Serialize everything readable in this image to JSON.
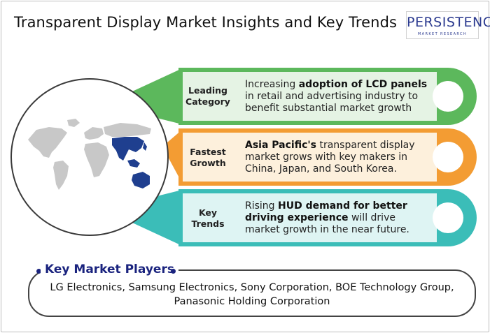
{
  "title": "Transparent Display Market Insights and Key Trends",
  "logo": {
    "main": "PERSISTENCE",
    "sub": "MARKET RESEARCH"
  },
  "colors": {
    "green": "#5cb85c",
    "orange": "#f39c33",
    "teal": "#3bbdb8",
    "navy": "#1a237e",
    "map_highlight": "#1f3f8f",
    "map_grey": "#c8c8c8"
  },
  "cards": [
    {
      "category": "Leading Category",
      "pre": "Increasing ",
      "bold": "adoption of LCD panels",
      "post": " in retail and advertising industry to benefit substantial market growth"
    },
    {
      "category": "Fastest Growth",
      "pre": "",
      "bold": "Asia Pacific's",
      "post": " transparent display market grows with key makers in China, Japan, and South Korea."
    },
    {
      "category": "Key Trends",
      "pre": "Rising ",
      "bold": "HUD demand for better driving experience",
      "post": " will drive market growth in the near future."
    }
  ],
  "key_players": {
    "title": "Key Market Players",
    "text": "LG Electronics, Samsung Electronics, Sony Corporation, BOE Technology Group, Panasonic Holding Corporation"
  }
}
